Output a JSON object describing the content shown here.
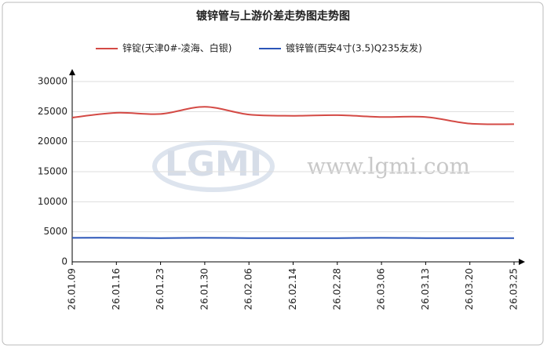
{
  "chart_data": {
    "type": "line",
    "title": "镀锌管与上游价差走势图走势图",
    "watermark": [
      "LGMI",
      "www.lgmi.com"
    ],
    "categories": [
      "26.01.09",
      "26.01.16",
      "26.01.23",
      "26.01.30",
      "26.02.06",
      "26.02.14",
      "26.02.28",
      "26.03.06",
      "26.03.13",
      "26.03.20",
      "26.03.25"
    ],
    "series": [
      {
        "name": "锌锭(天津0#-凌海、白银)",
        "color": "#d44a45",
        "values": [
          24000,
          24800,
          24600,
          25800,
          24500,
          24300,
          24400,
          24100,
          24100,
          23000,
          22900
        ]
      },
      {
        "name": "镀锌管(西安4寸(3.5)Q235友发)",
        "color": "#2b55b8",
        "values": [
          4000,
          4000,
          3950,
          4000,
          3950,
          3950,
          3950,
          4000,
          3950,
          3950,
          3950
        ]
      }
    ],
    "ylim": [
      0,
      30000
    ],
    "yticks": [
      0,
      5000,
      10000,
      15000,
      20000,
      25000,
      30000
    ],
    "grid": true
  }
}
